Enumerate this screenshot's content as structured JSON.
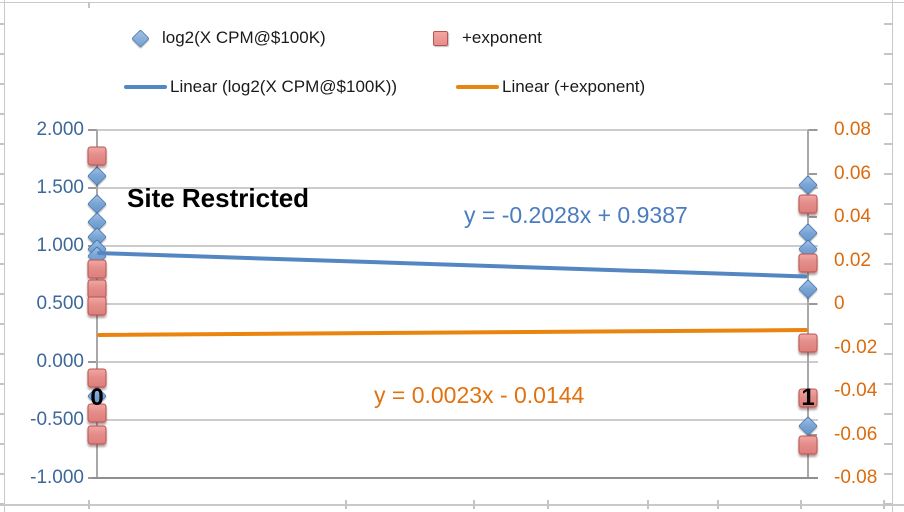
{
  "chart_data": {
    "type": "scatter",
    "title": "Site Restricted",
    "x_labels": [
      "0",
      "1"
    ],
    "grid": true,
    "legend_position": "top",
    "left_axis": {
      "range": [
        -1.0,
        2.0
      ],
      "ticks": [
        "2.000",
        "1.500",
        "1.000",
        "0.500",
        "0.000",
        "-0.500",
        "-1.000"
      ],
      "color": "#3d6899"
    },
    "right_axis": {
      "range": [
        -0.08,
        0.08
      ],
      "ticks": [
        "0.08",
        "0.06",
        "0.04",
        "0.02",
        "0",
        "-0.02",
        "-0.04",
        "-0.06",
        "-0.08"
      ],
      "color": "#db6b0d"
    },
    "series": [
      {
        "name": "log2(X CPM@$100K)",
        "axis": "left",
        "marker": "diamond",
        "fill": "#74a1d4",
        "border": "#4a7cb5",
        "points": [
          {
            "x": 0,
            "y": 1.6
          },
          {
            "x": 0,
            "y": 1.36
          },
          {
            "x": 0,
            "y": 1.21
          },
          {
            "x": 0,
            "y": 1.08
          },
          {
            "x": 0,
            "y": 0.97
          },
          {
            "x": 0,
            "y": 0.91
          },
          {
            "x": 0,
            "y": -0.29
          },
          {
            "x": 1,
            "y": 1.53
          },
          {
            "x": 1,
            "y": 1.11
          },
          {
            "x": 1,
            "y": 0.97
          },
          {
            "x": 1,
            "y": 0.63
          },
          {
            "x": 1,
            "y": -0.55
          }
        ]
      },
      {
        "name": "+exponent",
        "axis": "right",
        "marker": "square",
        "fill": "#e68d8b",
        "border": "#b55551",
        "points": [
          {
            "x": 0,
            "y": 0.068
          },
          {
            "x": 0,
            "y": 0.016
          },
          {
            "x": 0,
            "y": 0.007
          },
          {
            "x": 0,
            "y": -0.001
          },
          {
            "x": 0,
            "y": -0.034
          },
          {
            "x": 0,
            "y": -0.05
          },
          {
            "x": 0,
            "y": -0.06
          },
          {
            "x": 1,
            "y": 0.046
          },
          {
            "x": 1,
            "y": 0.019
          },
          {
            "x": 1,
            "y": -0.018
          },
          {
            "x": 1,
            "y": -0.043
          },
          {
            "x": 1,
            "y": -0.065
          }
        ]
      }
    ],
    "trendlines": [
      {
        "name": "Linear (log2(X CPM@$100K))",
        "axis": "left",
        "slope": -0.2028,
        "intercept": 0.9387,
        "equation": "y = -0.2028x + 0.9387",
        "color": "#5486c2"
      },
      {
        "name": "Linear (+exponent)",
        "axis": "right",
        "slope": 0.0023,
        "intercept": -0.0144,
        "equation": "y = 0.0023x - 0.0144",
        "color": "#e9840e"
      }
    ]
  }
}
